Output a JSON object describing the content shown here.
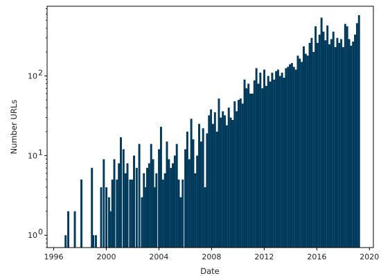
{
  "chart_data": {
    "type": "bar",
    "xlabel": "Date",
    "ylabel": "Number URLs",
    "yscale": "log",
    "xlim": [
      1995.5,
      2020.3
    ],
    "ylim": [
      0.7,
      750
    ],
    "xticks": [
      {
        "value": 1996,
        "label": "1996"
      },
      {
        "value": 2000,
        "label": "2000"
      },
      {
        "value": 2004,
        "label": "2004"
      },
      {
        "value": 2008,
        "label": "2008"
      },
      {
        "value": 2012,
        "label": "2012"
      },
      {
        "value": 2016,
        "label": "2016"
      },
      {
        "value": 2020,
        "label": "2020"
      }
    ],
    "yticks": [
      {
        "value": 1,
        "label": "10"
      },
      {
        "value": 10,
        "label": "10"
      },
      {
        "value": 100,
        "label": "10"
      }
    ],
    "ytick_exponents": [
      "0",
      "1",
      "2"
    ],
    "color": "#023a5c",
    "bars": [
      [
        1996.9,
        1
      ],
      [
        1997.1,
        2
      ],
      [
        1997.6,
        2
      ],
      [
        1998.1,
        5
      ],
      [
        1998.9,
        7
      ],
      [
        1999.0,
        1
      ],
      [
        1999.2,
        1
      ],
      [
        1999.6,
        4
      ],
      [
        1999.8,
        9
      ],
      [
        2000.0,
        4
      ],
      [
        2000.2,
        3
      ],
      [
        2000.3,
        2
      ],
      [
        2000.45,
        5
      ],
      [
        2000.6,
        9
      ],
      [
        2000.8,
        5
      ],
      [
        2000.95,
        8
      ],
      [
        2001.1,
        17
      ],
      [
        2001.3,
        12
      ],
      [
        2001.45,
        6
      ],
      [
        2001.6,
        8
      ],
      [
        2001.8,
        5
      ],
      [
        2001.95,
        5
      ],
      [
        2002.1,
        10
      ],
      [
        2002.3,
        7
      ],
      [
        2002.5,
        14
      ],
      [
        2002.7,
        3
      ],
      [
        2002.85,
        6
      ],
      [
        2003.0,
        4
      ],
      [
        2003.1,
        7
      ],
      [
        2003.25,
        8
      ],
      [
        2003.4,
        14
      ],
      [
        2003.55,
        9
      ],
      [
        2003.7,
        4
      ],
      [
        2003.8,
        6
      ],
      [
        2004.0,
        12
      ],
      [
        2004.15,
        23
      ],
      [
        2004.3,
        5
      ],
      [
        2004.45,
        6
      ],
      [
        2004.6,
        15
      ],
      [
        2004.75,
        9
      ],
      [
        2004.9,
        7
      ],
      [
        2005.05,
        8
      ],
      [
        2005.2,
        10
      ],
      [
        2005.35,
        14
      ],
      [
        2005.5,
        5
      ],
      [
        2005.65,
        3
      ],
      [
        2005.8,
        5
      ],
      [
        2006.0,
        12
      ],
      [
        2006.15,
        20
      ],
      [
        2006.3,
        9
      ],
      [
        2006.45,
        29
      ],
      [
        2006.6,
        16
      ],
      [
        2006.75,
        6
      ],
      [
        2006.9,
        10
      ],
      [
        2007.05,
        25
      ],
      [
        2007.2,
        15
      ],
      [
        2007.35,
        22
      ],
      [
        2007.5,
        4
      ],
      [
        2007.65,
        19
      ],
      [
        2007.8,
        32
      ],
      [
        2007.95,
        38
      ],
      [
        2008.1,
        25
      ],
      [
        2008.25,
        35
      ],
      [
        2008.4,
        20
      ],
      [
        2008.55,
        52
      ],
      [
        2008.7,
        30
      ],
      [
        2008.85,
        36
      ],
      [
        2009.0,
        32
      ],
      [
        2009.15,
        24
      ],
      [
        2009.3,
        40
      ],
      [
        2009.45,
        30
      ],
      [
        2009.6,
        28
      ],
      [
        2009.75,
        48
      ],
      [
        2009.9,
        36
      ],
      [
        2010.05,
        50
      ],
      [
        2010.2,
        52
      ],
      [
        2010.35,
        45
      ],
      [
        2010.5,
        90
      ],
      [
        2010.65,
        70
      ],
      [
        2010.8,
        80
      ],
      [
        2010.95,
        60
      ],
      [
        2011.1,
        60
      ],
      [
        2011.25,
        88
      ],
      [
        2011.4,
        125
      ],
      [
        2011.55,
        80
      ],
      [
        2011.7,
        110
      ],
      [
        2011.85,
        70
      ],
      [
        2012.0,
        120
      ],
      [
        2012.15,
        75
      ],
      [
        2012.3,
        100
      ],
      [
        2012.45,
        85
      ],
      [
        2012.6,
        110
      ],
      [
        2012.75,
        90
      ],
      [
        2012.9,
        115
      ],
      [
        2013.05,
        120
      ],
      [
        2013.2,
        100
      ],
      [
        2013.35,
        110
      ],
      [
        2013.5,
        95
      ],
      [
        2013.65,
        125
      ],
      [
        2013.8,
        130
      ],
      [
        2013.95,
        140
      ],
      [
        2014.1,
        145
      ],
      [
        2014.25,
        130
      ],
      [
        2014.4,
        120
      ],
      [
        2014.55,
        180
      ],
      [
        2014.7,
        165
      ],
      [
        2014.85,
        150
      ],
      [
        2015.0,
        235
      ],
      [
        2015.15,
        190
      ],
      [
        2015.3,
        180
      ],
      [
        2015.45,
        260
      ],
      [
        2015.6,
        300
      ],
      [
        2015.75,
        200
      ],
      [
        2015.9,
        420
      ],
      [
        2016.05,
        260
      ],
      [
        2016.2,
        330
      ],
      [
        2016.35,
        540
      ],
      [
        2016.5,
        360
      ],
      [
        2016.65,
        280
      ],
      [
        2016.8,
        430
      ],
      [
        2016.95,
        250
      ],
      [
        2017.1,
        290
      ],
      [
        2017.25,
        360
      ],
      [
        2017.4,
        230
      ],
      [
        2017.55,
        300
      ],
      [
        2017.7,
        260
      ],
      [
        2017.85,
        290
      ],
      [
        2018.0,
        230
      ],
      [
        2018.15,
        450
      ],
      [
        2018.3,
        420
      ],
      [
        2018.45,
        290
      ],
      [
        2018.6,
        240
      ],
      [
        2018.75,
        270
      ],
      [
        2018.9,
        330
      ],
      [
        2019.05,
        460
      ],
      [
        2019.2,
        580
      ]
    ],
    "bar_width": 0.14
  }
}
